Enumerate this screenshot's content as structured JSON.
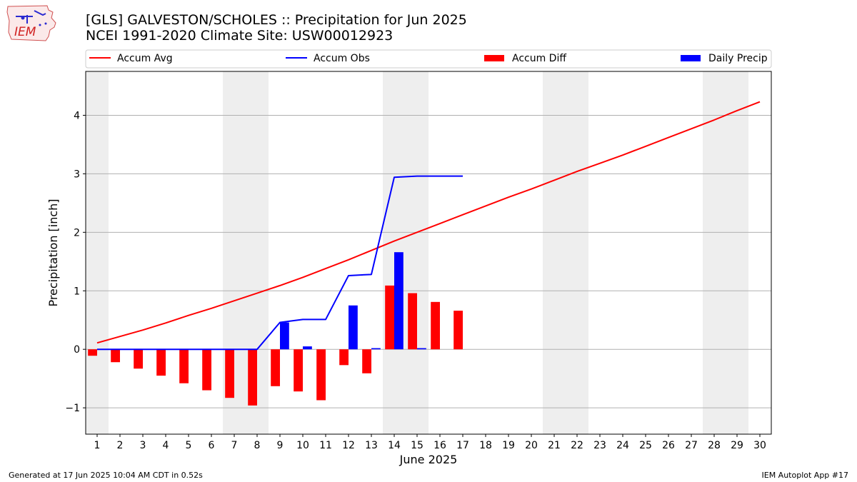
{
  "header": {
    "title_line1": "[GLS] GALVESTON/SCHOLES :: Precipitation for Jun 2025",
    "title_line2": "NCEI 1991-2020 Climate Site: USW00012923",
    "logo_text": "IEM"
  },
  "footer": {
    "left": "Generated at 17 Jun 2025 10:04 AM CDT in 0.52s",
    "right": "IEM Autoplot App #17"
  },
  "colors": {
    "accum_avg": "#ff0000",
    "accum_obs": "#0000ff",
    "accum_diff": "#ff0000",
    "daily_precip": "#0000ff",
    "weekend_band": "#eeeeee",
    "grid": "#b0b0b0"
  },
  "chart_data": {
    "type": "bar",
    "xlabel": "June 2025",
    "ylabel": "Precipitation [inch]",
    "xlim": [
      0.5,
      30.5
    ],
    "ylim": [
      -1.45,
      4.75
    ],
    "yticks": [
      -1,
      0,
      1,
      2,
      3,
      4
    ],
    "ytick_labels": [
      "−1",
      "0",
      "1",
      "2",
      "3",
      "4"
    ],
    "grid": "y",
    "legend_position": "top, above plot",
    "weekend_days": [
      1,
      7,
      8,
      14,
      15,
      21,
      22,
      28,
      29
    ],
    "days": [
      1,
      2,
      3,
      4,
      5,
      6,
      7,
      8,
      9,
      10,
      11,
      12,
      13,
      14,
      15,
      16,
      17,
      18,
      19,
      20,
      21,
      22,
      23,
      24,
      25,
      26,
      27,
      28,
      29,
      30
    ],
    "series": [
      {
        "name": "Accum Avg",
        "kind": "line",
        "values": [
          0.11,
          0.22,
          0.33,
          0.45,
          0.58,
          0.7,
          0.83,
          0.96,
          1.09,
          1.23,
          1.38,
          1.53,
          1.69,
          1.85,
          2.0,
          2.15,
          2.3,
          2.45,
          2.6,
          2.74,
          2.89,
          3.04,
          3.18,
          3.32,
          3.47,
          3.62,
          3.77,
          3.92,
          4.08,
          4.23
        ]
      },
      {
        "name": "Accum Obs",
        "kind": "line",
        "values": [
          0,
          0,
          0,
          0,
          0,
          0,
          0,
          0,
          0.46,
          0.51,
          0.51,
          1.26,
          1.28,
          2.94,
          2.96,
          2.96,
          2.96
        ]
      },
      {
        "name": "Accum Diff",
        "kind": "bar",
        "values": [
          -0.11,
          -0.22,
          -0.33,
          -0.45,
          -0.58,
          -0.7,
          -0.83,
          -0.96,
          -0.63,
          -0.72,
          -0.87,
          -0.27,
          -0.41,
          1.09,
          0.96,
          0.81,
          0.66
        ]
      },
      {
        "name": "Daily Precip",
        "kind": "bar",
        "values": [
          0,
          0,
          0,
          0,
          0,
          0,
          0,
          0,
          0.46,
          0.05,
          0,
          0.75,
          0.02,
          1.66,
          0.02,
          0,
          0
        ]
      }
    ]
  }
}
